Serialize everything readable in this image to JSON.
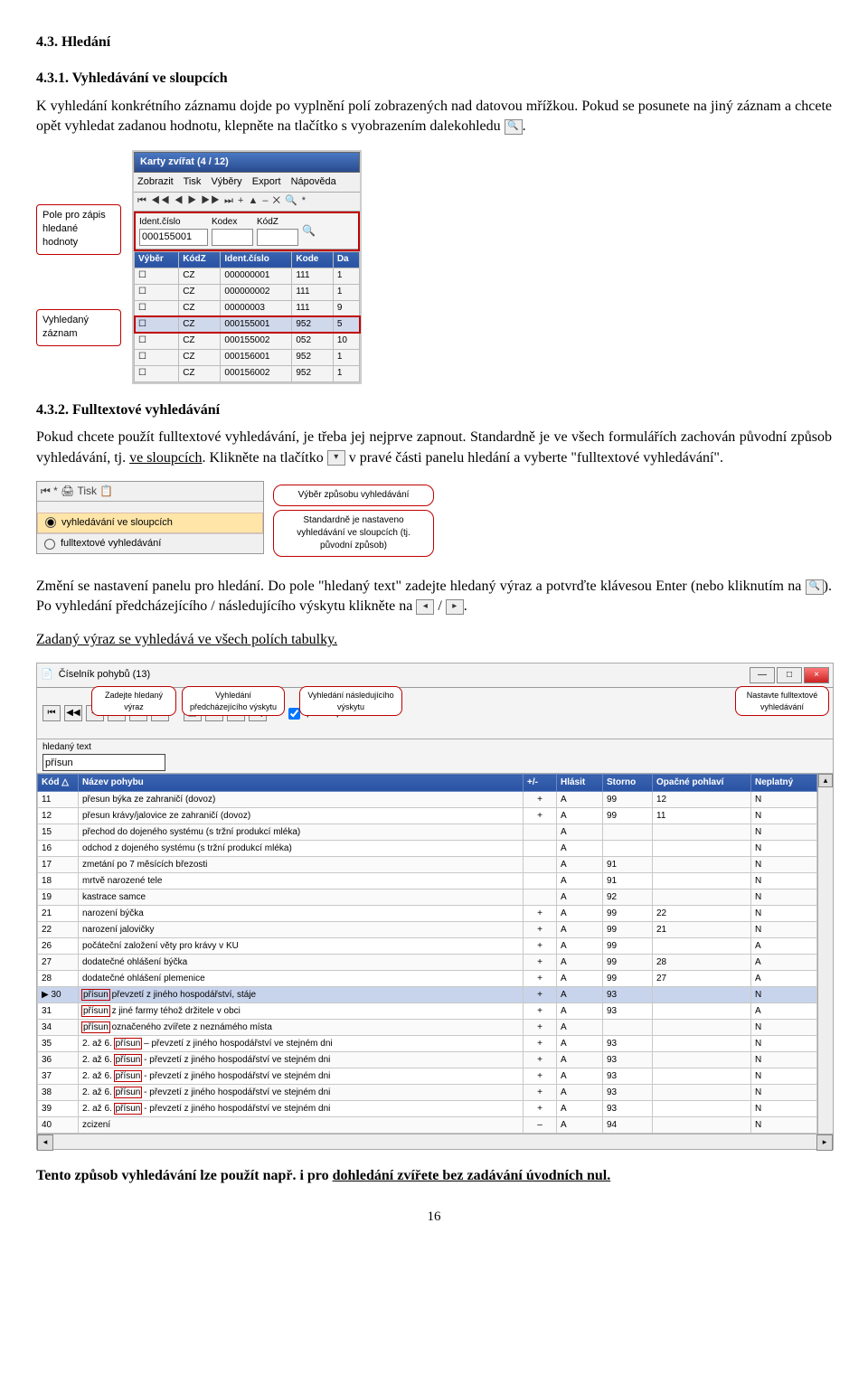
{
  "section431_title": "4.3. Hledání",
  "section4311_title": "4.3.1. Vyhledávání ve sloupcích",
  "para1_part1": "K vyhledání konkrétního záznamu dojde po vyplnění polí zobrazených nad datovou mřížkou. Pokud se posunete na jiný záznam a chcete opět vyhledat zadanou hodnotu, klepněte na tlačítko s vyobrazením dalekohledu ",
  "para1_icon_end": ".",
  "fig1": {
    "callout_top": "Pole pro zápis hledané hodnoty",
    "callout_bottom": "Vyhledaný záznam",
    "app_title": "Karty zvířat (4 / 12)",
    "menus": [
      "Zobrazit",
      "Tisk",
      "Výběry",
      "Export",
      "Nápověda"
    ],
    "toolbar_glyphs": "⏮  ◀◀  ◀  ▶  ▶▶  ⏭  +  ▲  –  ✕  🔍  *",
    "search_labels": [
      "Ident.číslo",
      "Kodex",
      "KódZ"
    ],
    "search_vals": [
      "000155001",
      "",
      ""
    ],
    "cols": [
      "Výběr",
      "KódZ",
      "Ident.číslo",
      "Kode",
      "Da"
    ],
    "rows": [
      [
        "☐",
        "CZ",
        "000000001",
        "111",
        "1"
      ],
      [
        "☐",
        "CZ",
        "000000002",
        "111",
        "1"
      ],
      [
        "☐",
        "CZ",
        "00000003",
        "111",
        "9"
      ],
      [
        "☐",
        "CZ",
        "000155001",
        "952",
        "5"
      ],
      [
        "☐",
        "CZ",
        "000155002",
        "052",
        "10"
      ],
      [
        "☐",
        "CZ",
        "000156001",
        "952",
        "1"
      ],
      [
        "☐",
        "CZ",
        "000156002",
        "952",
        "1"
      ]
    ],
    "hl_row_index": 3
  },
  "section4312_title": "4.3.2. Fulltextové vyhledávání",
  "para2_a": "Pokud chcete použít fulltextové vyhledávání, je třeba jej nejprve zapnout. Standardně je ve všech formulářích zachován původní způsob vyhledávání, tj. ",
  "para2_link": "ve sloupcích",
  "para2_b": ". Klikněte na tlačítko ",
  "para2_c": " v pravé části panelu hledání a vyberte \"fulltextové vyhledávání\".",
  "fig2": {
    "toolbar_glyphs": "⏮  *     🖨 Tisk   📋",
    "opt1": "vyhledávání ve sloupcích",
    "opt2": "fulltextové vyhledávání",
    "speech1": "Výběr způsobu vyhledávání",
    "speech2": "Standardně je nastaveno vyhledávání ve sloupcích (tj. původní způsob)"
  },
  "para3_a": "Změní se nastavení panelu pro hledání. Do pole \"hledaný text\" zadejte hledaný výraz a potvrďte klávesou Enter (nebo kliknutím na ",
  "para3_b": "). Po vyhledání předcházejícího / následujícího výskytu klikněte na ",
  "para3_sep": " / ",
  "para3_end": ".",
  "para4": "Zadaný výraz se vyhledává ve všech polích tabulky.",
  "fig3": {
    "title": "Číselník pohybů (13)",
    "speech_zadejte": "Zadejte hledaný výraz",
    "speech_prev": "Vyhledání předcházejícího výskytu",
    "speech_next": "Vyhledání následujícího výskytu",
    "speech_full": "Nastavte fulltextové vyhledávání",
    "chk_label": "pouze platné",
    "filter_label": "hledaný text",
    "filter_val": "přísun",
    "cols": [
      "Kód",
      "Název pohybu",
      "+/-",
      "Hlásit",
      "Storno",
      "Opačné pohlaví",
      "Neplatný"
    ],
    "rows": [
      [
        "11",
        "přesun býka ze zahraničí (dovoz)",
        "+",
        "A",
        "99",
        "12",
        "N"
      ],
      [
        "12",
        "přesun krávy/jalovice ze zahraničí (dovoz)",
        "+",
        "A",
        "99",
        "11",
        "N"
      ],
      [
        "15",
        "přechod do dojeného systému (s tržní produkcí mléka)",
        "",
        "A",
        "",
        "",
        "N"
      ],
      [
        "16",
        "odchod z dojeného systému (s tržní produkcí mléka)",
        "",
        "A",
        "",
        "",
        "N"
      ],
      [
        "17",
        "zmetání po 7 měsících březosti",
        "",
        "A",
        "91",
        "",
        "N"
      ],
      [
        "18",
        "mrtvě narozené tele",
        "",
        "A",
        "91",
        "",
        "N"
      ],
      [
        "19",
        "kastrace samce",
        "",
        "A",
        "92",
        "",
        "N"
      ],
      [
        "21",
        "narození býčka",
        "+",
        "A",
        "99",
        "22",
        "N"
      ],
      [
        "22",
        "narození jalovičky",
        "+",
        "A",
        "99",
        "21",
        "N"
      ],
      [
        "26",
        "počáteční založení věty pro krávy v KU",
        "+",
        "A",
        "99",
        "",
        "A"
      ],
      [
        "27",
        "dodatečné ohlášení býčka",
        "+",
        "A",
        "99",
        "28",
        "A"
      ],
      [
        "28",
        "dodatečné ohlášení plemenice",
        "+",
        "A",
        "99",
        "27",
        "A"
      ],
      [
        "30",
        "|přísun| převzetí z jiného hospodářství, stáje",
        "+",
        "A",
        "93",
        "",
        "N"
      ],
      [
        "31",
        "|přísun| z jiné farmy téhož držitele v obci",
        "+",
        "A",
        "93",
        "",
        "A"
      ],
      [
        "34",
        "|přísun| označeného zvířete z neznámého místa",
        "+",
        "A",
        "",
        "",
        "N"
      ],
      [
        "35",
        "2. až 6. |přísun| – převzetí z jiného hospodářství ve stejném dni",
        "+",
        "A",
        "93",
        "",
        "N"
      ],
      [
        "36",
        "2. až 6. |přísun| - převzetí z jiného hospodářství ve stejném dni",
        "+",
        "A",
        "93",
        "",
        "N"
      ],
      [
        "37",
        "2. až 6. |přísun| - převzetí z jiného hospodářství ve stejném dni",
        "+",
        "A",
        "93",
        "",
        "N"
      ],
      [
        "38",
        "2. až 6. |přísun| - převzetí z jiného hospodářství ve stejném dni",
        "+",
        "A",
        "93",
        "",
        "N"
      ],
      [
        "39",
        "2. až 6. |přísun| - převzetí z jiného hospodářství ve stejném dni",
        "+",
        "A",
        "93",
        "",
        "N"
      ],
      [
        "40",
        "zcizení",
        "–",
        "A",
        "94",
        "",
        "N"
      ]
    ],
    "active_row_index": 12
  },
  "para5_a": "Tento způsob vyhledávání lze použít např. i pro ",
  "para5_u": "dohledání zvířete bez zadávání úvodních nul.",
  "page_number": "16"
}
